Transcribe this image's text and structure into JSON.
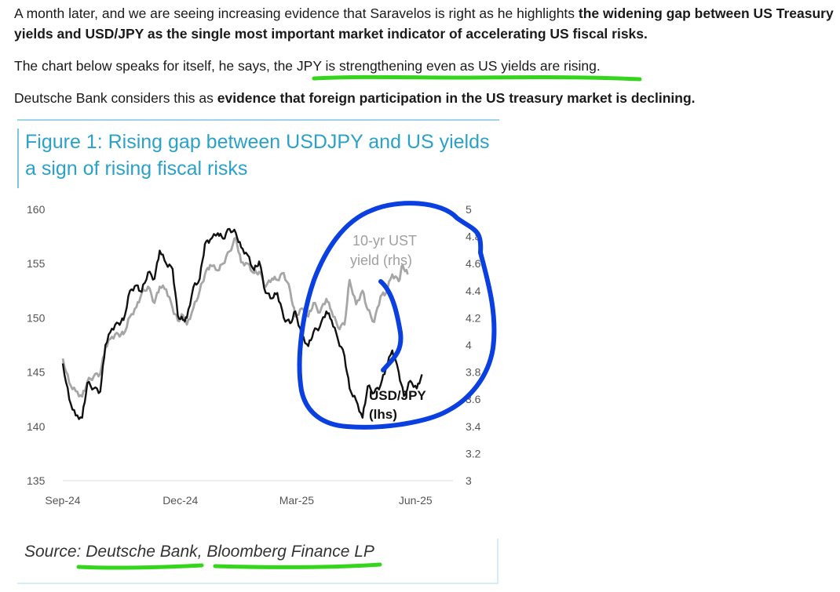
{
  "article": {
    "p1_text": "A month later, and we are seeing increasing evidence that Saravelos is right as he highlights ",
    "p1_bold": "the widening gap between US Treasury yields and USD/JPY as the single most important market indicator of accelerating US fiscal risks.",
    "p2_text_a": "The chart below speaks for itself, he says, the ",
    "p2_highlight": "JPY is strengthening even as US yields are rising",
    "p2_text_b": ".",
    "p3_text": "Deutsche Bank considers this as ",
    "p3_bold": "evidence that foreign participation in the US treasury market is declining."
  },
  "figure": {
    "title": "Figure 1: Rising gap between USDJPY and US yields a sign of rising fiscal risks",
    "source_prefix": "Source: ",
    "source_a": "Deutsche Bank",
    "source_sep": ", ",
    "source_b": "Bloomberg Finance LP"
  },
  "annotation_colors": {
    "circle": "#0a3fe0",
    "underline": "#33d61a"
  },
  "chart_data": {
    "type": "line",
    "title": "Figure 1: Rising gap between USDJPY and US yields a sign of rising fiscal risks",
    "x_ticks": [
      "Sep-24",
      "Dec-24",
      "Mar-25",
      "Jun-25"
    ],
    "x_range": [
      "2024-09-01",
      "2025-06-30"
    ],
    "y_left": {
      "ylim": [
        135,
        160
      ],
      "ticks": [
        135,
        140,
        145,
        150,
        155,
        160
      ]
    },
    "y_right": {
      "ylim": [
        3,
        5
      ],
      "ticks": [
        "3",
        "3.2",
        "3.4",
        "3.6",
        "3.8",
        "4",
        "4.2",
        "4.4",
        "4.6",
        "4.8",
        "5"
      ]
    },
    "series": [
      {
        "name": "USD/JPY",
        "name_line2": "(lhs)",
        "axis": "left",
        "color": "#111111",
        "points": [
          [
            "2024-09-01",
            145.8
          ],
          [
            "2024-09-06",
            142.5
          ],
          [
            "2024-09-11",
            141.0
          ],
          [
            "2024-09-16",
            140.8
          ],
          [
            "2024-09-20",
            144.0
          ],
          [
            "2024-09-25",
            143.5
          ],
          [
            "2024-09-30",
            143.2
          ],
          [
            "2024-10-04",
            147.5
          ],
          [
            "2024-10-09",
            149.0
          ],
          [
            "2024-10-14",
            149.5
          ],
          [
            "2024-10-18",
            149.8
          ],
          [
            "2024-10-23",
            152.5
          ],
          [
            "2024-10-28",
            153.0
          ],
          [
            "2024-11-01",
            152.4
          ],
          [
            "2024-11-06",
            154.2
          ],
          [
            "2024-11-11",
            153.6
          ],
          [
            "2024-11-15",
            156.2
          ],
          [
            "2024-11-20",
            155.0
          ],
          [
            "2024-11-25",
            154.5
          ],
          [
            "2024-11-29",
            150.2
          ],
          [
            "2024-12-03",
            149.8
          ],
          [
            "2024-12-06",
            150.0
          ],
          [
            "2024-12-11",
            152.8
          ],
          [
            "2024-12-16",
            153.6
          ],
          [
            "2024-12-20",
            156.8
          ],
          [
            "2024-12-24",
            157.2
          ],
          [
            "2024-12-30",
            157.8
          ],
          [
            "2025-01-03",
            157.3
          ],
          [
            "2025-01-08",
            158.2
          ],
          [
            "2025-01-13",
            157.8
          ],
          [
            "2025-01-17",
            156.5
          ],
          [
            "2025-01-22",
            155.8
          ],
          [
            "2025-01-27",
            154.4
          ],
          [
            "2025-01-31",
            155.2
          ],
          [
            "2025-02-05",
            152.3
          ],
          [
            "2025-02-10",
            151.8
          ],
          [
            "2025-02-14",
            152.3
          ],
          [
            "2025-02-19",
            150.0
          ],
          [
            "2025-02-24",
            149.5
          ],
          [
            "2025-02-28",
            150.6
          ],
          [
            "2025-03-05",
            148.4
          ],
          [
            "2025-03-10",
            147.4
          ],
          [
            "2025-03-14",
            148.7
          ],
          [
            "2025-03-19",
            149.2
          ],
          [
            "2025-03-24",
            150.6
          ],
          [
            "2025-03-28",
            149.8
          ],
          [
            "2025-04-02",
            148.0
          ],
          [
            "2025-04-07",
            146.5
          ],
          [
            "2025-04-11",
            143.5
          ],
          [
            "2025-04-16",
            142.4
          ],
          [
            "2025-04-21",
            140.8
          ],
          [
            "2025-04-25",
            143.7
          ],
          [
            "2025-04-30",
            143.1
          ],
          [
            "2025-05-05",
            143.8
          ],
          [
            "2025-05-09",
            145.3
          ],
          [
            "2025-05-14",
            147.0
          ],
          [
            "2025-05-19",
            145.0
          ],
          [
            "2025-05-23",
            142.8
          ],
          [
            "2025-05-28",
            144.2
          ],
          [
            "2025-06-02",
            143.5
          ],
          [
            "2025-06-06",
            144.8
          ]
        ]
      },
      {
        "name": "10-yr UST",
        "name_line2": "yield (rhs)",
        "axis": "right",
        "color": "#a6a6a6",
        "points": [
          [
            "2024-09-01",
            3.9
          ],
          [
            "2024-09-06",
            3.72
          ],
          [
            "2024-09-11",
            3.66
          ],
          [
            "2024-09-16",
            3.62
          ],
          [
            "2024-09-20",
            3.73
          ],
          [
            "2024-09-25",
            3.77
          ],
          [
            "2024-09-30",
            3.79
          ],
          [
            "2024-10-04",
            3.98
          ],
          [
            "2024-10-09",
            4.06
          ],
          [
            "2024-10-14",
            4.08
          ],
          [
            "2024-10-18",
            4.08
          ],
          [
            "2024-10-23",
            4.21
          ],
          [
            "2024-10-28",
            4.28
          ],
          [
            "2024-11-01",
            4.38
          ],
          [
            "2024-11-06",
            4.43
          ],
          [
            "2024-11-11",
            4.31
          ],
          [
            "2024-11-15",
            4.43
          ],
          [
            "2024-11-20",
            4.41
          ],
          [
            "2024-11-25",
            4.27
          ],
          [
            "2024-11-29",
            4.18
          ],
          [
            "2024-12-03",
            4.22
          ],
          [
            "2024-12-06",
            4.15
          ],
          [
            "2024-12-11",
            4.27
          ],
          [
            "2024-12-16",
            4.4
          ],
          [
            "2024-12-20",
            4.52
          ],
          [
            "2024-12-24",
            4.59
          ],
          [
            "2024-12-30",
            4.55
          ],
          [
            "2025-01-03",
            4.6
          ],
          [
            "2025-01-08",
            4.69
          ],
          [
            "2025-01-13",
            4.79
          ],
          [
            "2025-01-17",
            4.61
          ],
          [
            "2025-01-22",
            4.6
          ],
          [
            "2025-01-27",
            4.53
          ],
          [
            "2025-01-31",
            4.54
          ],
          [
            "2025-02-05",
            4.43
          ],
          [
            "2025-02-10",
            4.49
          ],
          [
            "2025-02-14",
            4.48
          ],
          [
            "2025-02-19",
            4.53
          ],
          [
            "2025-02-24",
            4.4
          ],
          [
            "2025-02-28",
            4.21
          ],
          [
            "2025-03-05",
            4.27
          ],
          [
            "2025-03-10",
            4.21
          ],
          [
            "2025-03-14",
            4.31
          ],
          [
            "2025-03-19",
            4.24
          ],
          [
            "2025-03-24",
            4.34
          ],
          [
            "2025-03-28",
            4.25
          ],
          [
            "2025-04-02",
            4.13
          ],
          [
            "2025-04-07",
            4.15
          ],
          [
            "2025-04-11",
            4.48
          ],
          [
            "2025-04-16",
            4.3
          ],
          [
            "2025-04-21",
            4.4
          ],
          [
            "2025-04-25",
            4.26
          ],
          [
            "2025-04-30",
            4.17
          ],
          [
            "2025-05-05",
            4.36
          ],
          [
            "2025-05-09",
            4.38
          ],
          [
            "2025-05-14",
            4.52
          ],
          [
            "2025-05-19",
            4.47
          ],
          [
            "2025-05-22",
            4.59
          ],
          [
            "2025-05-26",
            4.52
          ]
        ]
      }
    ],
    "grid": false,
    "legend": "inline labels"
  }
}
